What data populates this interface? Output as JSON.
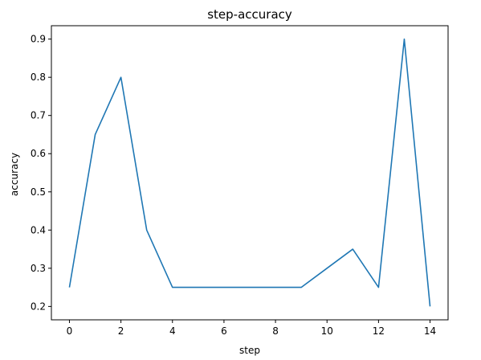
{
  "chart_data": {
    "type": "line",
    "title": "step-accuracy",
    "xlabel": "step",
    "ylabel": "accuracy",
    "xlim": [
      -0.7,
      14.7
    ],
    "ylim": [
      0.165,
      0.935
    ],
    "xticks": [
      0,
      2,
      4,
      6,
      8,
      10,
      12,
      14
    ],
    "yticks": [
      0.2,
      0.3,
      0.4,
      0.5,
      0.6,
      0.7,
      0.8,
      0.9
    ],
    "grid": false,
    "series": [
      {
        "color": "#1f77b4",
        "x": [
          0,
          1,
          2,
          3,
          4,
          5,
          6,
          7,
          8,
          9,
          10,
          11,
          12,
          13,
          14
        ],
        "y": [
          0.25,
          0.65,
          0.8,
          0.4,
          0.25,
          0.25,
          0.25,
          0.25,
          0.25,
          0.25,
          0.3,
          0.35,
          0.25,
          0.9,
          0.2
        ]
      }
    ]
  }
}
